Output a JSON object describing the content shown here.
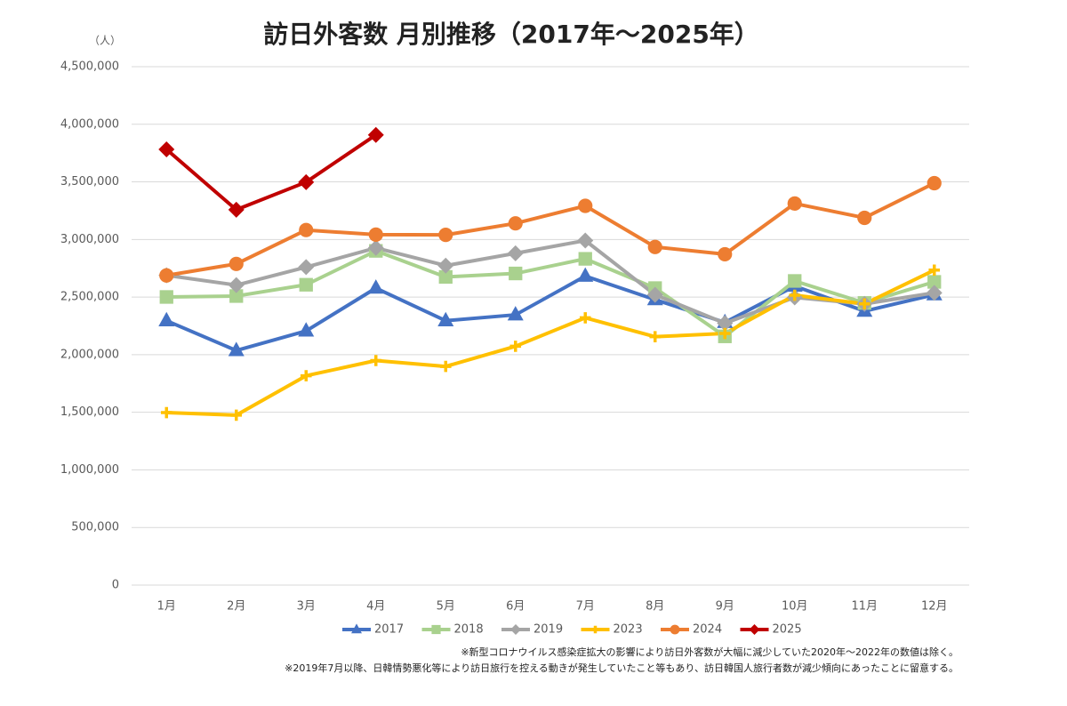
{
  "chart_data": {
    "type": "line",
    "title": "訪日外客数 月別推移（2017年～2025年）",
    "y_unit": "（人）",
    "categories": [
      "1月",
      "2月",
      "3月",
      "4月",
      "5月",
      "6月",
      "7月",
      "8月",
      "9月",
      "10月",
      "11月",
      "12月"
    ],
    "series": [
      {
        "name": "2017",
        "color": "#4472c4",
        "marker": "triangle",
        "values": [
          2295000,
          2036000,
          2206000,
          2578000,
          2295000,
          2346000,
          2682000,
          2478000,
          2280000,
          2595000,
          2378000,
          2521000
        ]
      },
      {
        "name": "2018",
        "color": "#a9d18e",
        "marker": "square",
        "values": [
          2501000,
          2509000,
          2607000,
          2901000,
          2675000,
          2705000,
          2832000,
          2578000,
          2159000,
          2640000,
          2449000,
          2632000
        ]
      },
      {
        "name": "2019",
        "color": "#a5a5a5",
        "marker": "diamond",
        "values": [
          2689000,
          2604000,
          2760000,
          2927000,
          2773000,
          2880000,
          2991000,
          2520000,
          2273000,
          2497000,
          2441000,
          2537000
        ]
      },
      {
        "name": "2023",
        "color": "#ffc000",
        "marker": "plus",
        "values": [
          1497000,
          1475000,
          1817000,
          1949000,
          1898000,
          2073000,
          2320000,
          2156000,
          2184000,
          2516000,
          2441000,
          2734000
        ]
      },
      {
        "name": "2024",
        "color": "#ed7d31",
        "marker": "circle",
        "values": [
          2688000,
          2788000,
          3082000,
          3042000,
          3040000,
          3140000,
          3292000,
          2935000,
          2872000,
          3312000,
          3188000,
          3489000
        ]
      },
      {
        "name": "2025",
        "color": "#c00000",
        "marker": "diamond",
        "values": [
          3782000,
          3258000,
          3498000,
          3908000,
          null,
          null,
          null,
          null,
          null,
          null,
          null,
          null
        ]
      }
    ],
    "ylim": [
      0,
      4500000
    ],
    "yticks": [
      0,
      {
        "value": 500000,
        "label": "500,000"
      },
      {
        "value": 1000000,
        "label": "1,000,000"
      },
      {
        "value": 1500000,
        "label": "1,500,000"
      },
      {
        "value": 2000000,
        "label": "2,000,000"
      },
      {
        "value": 2500000,
        "label": "2,500,000"
      },
      {
        "value": 3000000,
        "label": "3,000,000"
      },
      {
        "value": 3500000,
        "label": "3,500,000"
      },
      {
        "value": 4000000,
        "label": "4,000,000"
      },
      {
        "value": 4500000,
        "label": "4,500,000"
      }
    ],
    "grid": true,
    "legend": "bottom",
    "notes": [
      "※新型コロナウイルス感染症拡大の影響により訪日外客数が大幅に減少していた2020年～2022年の数値は除く。",
      "※2019年7月以降、日韓情勢悪化等により訪日旅行を控える動きが発生していたこと等もあり、訪日韓国人旅行者数が減少傾向にあったことに留意する。"
    ]
  }
}
